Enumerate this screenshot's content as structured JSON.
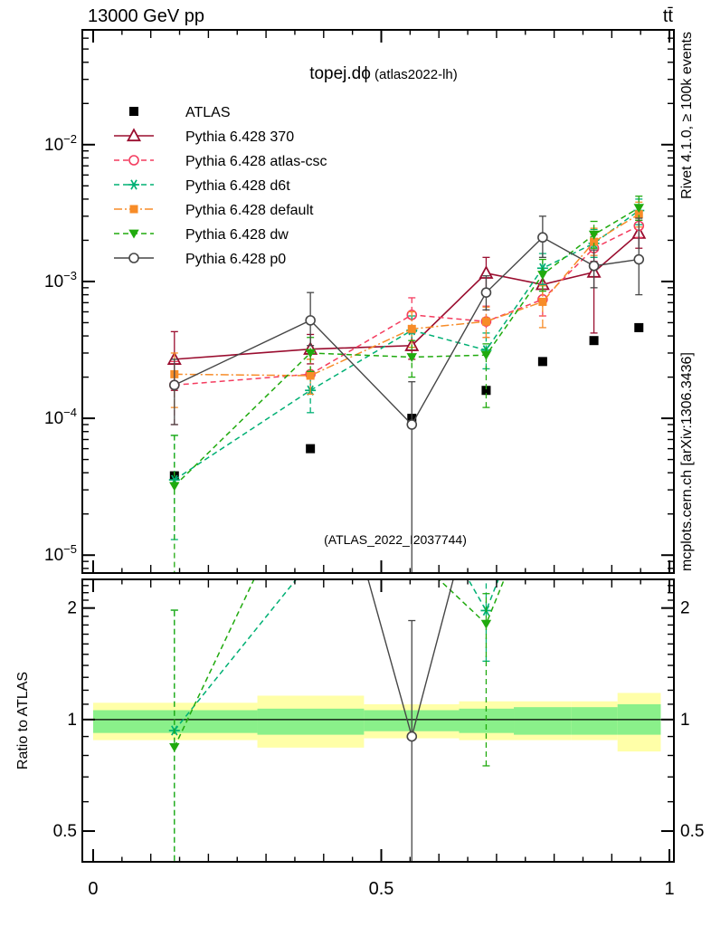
{
  "header": {
    "beam": "13000 GeV pp",
    "process": "tt̄"
  },
  "plot_title": {
    "name": "topej.dϕ",
    "tag": " (atlas2022-lh)"
  },
  "watermark": "(ATLAS_2022_I2037744)",
  "sidebar_right": {
    "top": "Rivet 4.1.0, ≥ 100k events",
    "bottom": "mcplots.cern.ch [arXiv:1306.3436]",
    "color": "#999999"
  },
  "ratio_axis_label": "Ratio to ATLAS",
  "colors": {
    "frame": "#000000",
    "watermark": "#b5b5b5",
    "band_yellow": "#ffffa8",
    "band_green": "#8af08a"
  },
  "chart_data": {
    "type": "line",
    "title": "topej.dϕ (atlas2022-lh)",
    "xlabel": "",
    "ylabel": "",
    "x": [
      0.141,
      0.377,
      0.553,
      0.682,
      0.78,
      0.869,
      0.947
    ],
    "xlim": [
      -0.0188,
      1.0078
    ],
    "main_ylim": [
      7.4e-06,
      0.069
    ],
    "main_y_log": true,
    "main_y_decades": [
      -2,
      -3,
      -4,
      -5
    ],
    "x_major_ticks": [
      0,
      0.5,
      1
    ],
    "x_major_labels": [
      "0",
      "0.5",
      "1"
    ],
    "ratio_ylim": [
      0.413,
      2.39
    ],
    "ratio_y_log": true,
    "ratio_major_ticks": [
      0.5,
      1,
      2
    ],
    "ratio_major_labels": [
      "0.5",
      "1",
      "2"
    ],
    "legend_position": "top-left-inside",
    "grid": false,
    "series": [
      {
        "name": "ATLAS",
        "slug": "atlas",
        "color": "#000000",
        "marker": "square",
        "msize": 10,
        "line": "none",
        "lw": 0,
        "values": [
          3.8e-05,
          6e-05,
          0.0001,
          0.00016,
          0.00026,
          0.00037,
          0.00046
        ],
        "errors": null
      },
      {
        "name": "Pythia 6.428 370",
        "slug": "pythia-370",
        "color": "#9a0d2f",
        "marker": "triangle-up",
        "msize": 13,
        "line": "solid",
        "lw": 1.6,
        "values": [
          0.00027,
          0.00032,
          0.00034,
          0.00115,
          0.00095,
          0.00117,
          0.00225
        ],
        "errors": [
          [
            0.00016,
            0.00043
          ],
          [
            0.00025,
            0.00041
          ],
          [
            0.00027,
            0.00042
          ],
          [
            0.00088,
            0.0015
          ],
          [
            0.00073,
            0.00125
          ],
          [
            0.00042,
            0.0014
          ],
          [
            0.00175,
            0.0028
          ]
        ]
      },
      {
        "name": "Pythia 6.428 atlas-csc",
        "slug": "pythia-atlas-csc",
        "color": "#f43c5f",
        "marker": "circle",
        "msize": 10,
        "line": "dashed",
        "lw": 1.5,
        "values": [
          0.000175,
          0.00021,
          0.00057,
          0.00051,
          0.00074,
          0.00175,
          0.00255
        ],
        "errors": [
          [
            9e-05,
            0.00026
          ],
          [
            0.00016,
            0.00027
          ],
          [
            0.00044,
            0.00076
          ],
          [
            0.00039,
            0.00066
          ],
          [
            0.00056,
            0.00096
          ],
          [
            0.00135,
            0.0022
          ],
          [
            0.0021,
            0.0031
          ]
        ]
      },
      {
        "name": "Pythia 6.428 d6t",
        "slug": "pythia-d6t",
        "color": "#00b074",
        "marker": "asterisk",
        "msize": 12,
        "line": "dashed",
        "lw": 1.5,
        "values": [
          3.55e-05,
          0.00016,
          0.00044,
          0.000315,
          0.00125,
          0.0019,
          0.0033
        ],
        "errors": [
          [
            1.3e-05,
            7.5e-05
          ],
          [
            0.00011,
            0.00022
          ],
          [
            0.00033,
            0.00056
          ],
          [
            0.00023,
            0.00042
          ],
          [
            0.00095,
            0.0016
          ],
          [
            0.0015,
            0.0024
          ],
          [
            0.0026,
            0.004
          ]
        ]
      },
      {
        "name": "Pythia 6.428 default",
        "slug": "pythia-default",
        "color": "#f78c28",
        "marker": "square",
        "msize": 9,
        "line": "dashdot",
        "lw": 1.5,
        "values": [
          0.00021,
          0.000205,
          0.00045,
          0.00051,
          0.00071,
          0.00195,
          0.0031
        ],
        "errors": [
          [
            0.00012,
            0.0003
          ],
          [
            0.00015,
            0.00027
          ],
          [
            0.00033,
            0.0006
          ],
          [
            0.00039,
            0.00065
          ],
          [
            0.00046,
            0.00093
          ],
          [
            0.00155,
            0.00245
          ],
          [
            0.0025,
            0.0038
          ]
        ]
      },
      {
        "name": "Pythia 6.428 dw",
        "slug": "pythia-dw",
        "color": "#20aa0e",
        "marker": "triangle-down",
        "msize": 11,
        "line": "dashed",
        "lw": 1.5,
        "values": [
          3.2e-05,
          0.0003,
          0.00028,
          0.00029,
          0.00112,
          0.0022,
          0.00345
        ],
        "errors": [
          [
            7e-06,
            7.5e-05
          ],
          [
            0.00022,
            0.00039
          ],
          [
            0.0002,
            0.00037
          ],
          [
            0.00012,
            0.00035
          ],
          [
            0.00085,
            0.00145
          ],
          [
            0.00175,
            0.00275
          ],
          [
            0.0028,
            0.0042
          ]
        ]
      },
      {
        "name": "Pythia 6.428 p0",
        "slug": "pythia-p0",
        "color": "#464646",
        "marker": "circle",
        "msize": 10,
        "line": "solid",
        "lw": 1.4,
        "values": [
          0.000175,
          0.00052,
          9e-05,
          0.00083,
          0.0021,
          0.0013,
          0.00145
        ],
        "errors": [
          [
            9e-05,
            0.00027
          ],
          [
            0.00034,
            0.00083
          ],
          [
            5e-06,
            0.000185
          ],
          [
            0.00062,
            0.0011
          ],
          [
            0.0015,
            0.003
          ],
          [
            0.0009,
            0.0017
          ],
          [
            0.0008,
            0.0029
          ]
        ]
      }
    ],
    "ratio_bands": {
      "bin_edges": [
        0,
        0.285,
        0.47,
        0.635,
        0.73,
        0.83,
        0.91,
        0.985
      ],
      "yellow": [
        [
          0.88,
          1.11
        ],
        [
          0.84,
          1.16
        ],
        [
          0.89,
          1.1
        ],
        [
          0.88,
          1.12
        ],
        [
          0.88,
          1.12
        ],
        [
          0.88,
          1.12
        ],
        [
          0.82,
          1.18
        ]
      ],
      "green": [
        [
          0.92,
          1.06
        ],
        [
          0.91,
          1.07
        ],
        [
          0.93,
          1.06
        ],
        [
          0.92,
          1.07
        ],
        [
          0.91,
          1.08
        ],
        [
          0.91,
          1.08
        ],
        [
          0.91,
          1.1
        ]
      ],
      "unity_line": 1
    }
  }
}
